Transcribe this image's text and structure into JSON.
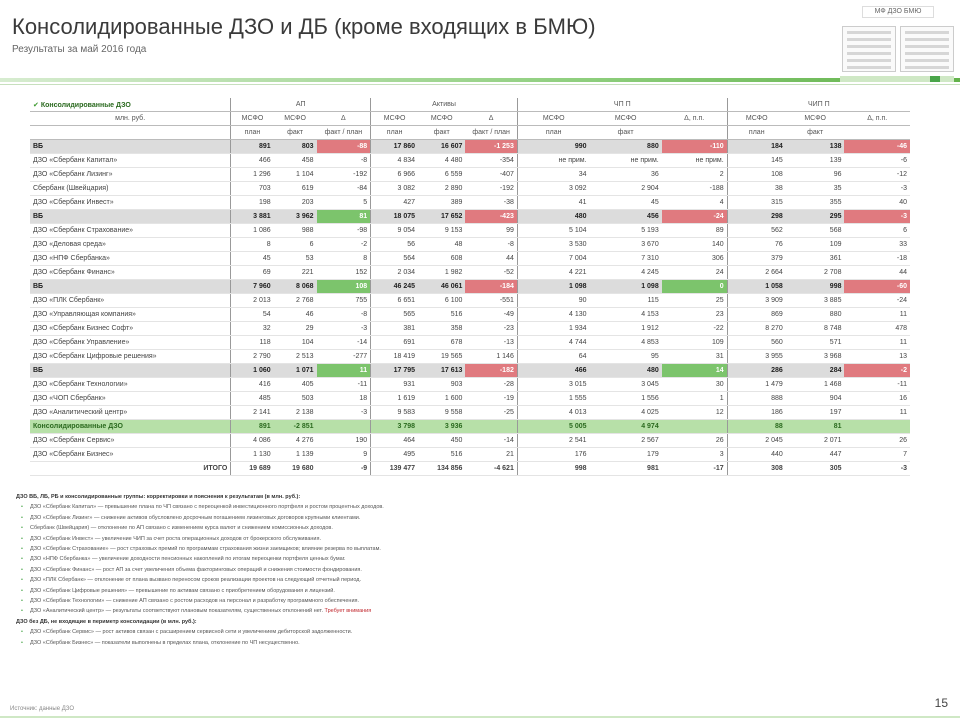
{
  "header": {
    "title": "Консолидированные ДЗО и ДБ (кроме входящих в БМЮ)",
    "subtitle": "Результаты за май 2016 года"
  },
  "table": {
    "legend": "Консолидированные ДЗО",
    "col_name": "млн. руб.",
    "groups": [
      "АП",
      "Активы",
      "ЧП П",
      "ЧИП П"
    ],
    "subheads": [
      [
        "МСФО",
        "МСФО",
        "Δ"
      ],
      [
        "МСФО",
        "МСФО",
        "Δ"
      ],
      [
        "МСФО",
        "МСФО",
        "Δ, п.п."
      ],
      [
        "МСФО",
        "МСФО",
        "Δ, п.п."
      ]
    ],
    "subheads2": [
      [
        "план",
        "факт",
        "факт / план"
      ],
      [
        "план",
        "факт",
        "факт / план"
      ],
      [
        "план",
        "факт",
        ""
      ],
      [
        "план",
        "факт",
        ""
      ]
    ],
    "rows": [
      {
        "type": "grp",
        "name": "ВБ",
        "v": [
          "891",
          "803",
          "-88",
          "17 860",
          "16 607",
          "-1 253",
          "990",
          "880",
          "-110",
          "184",
          "138",
          "-46"
        ]
      },
      {
        "type": "row",
        "name": "ДЗО «Сбербанк Капитал»",
        "v": [
          "466",
          "458",
          "-8",
          "4 834",
          "4 480",
          "-354",
          "не прим.",
          "не прим.",
          "не прим.",
          "145",
          "139",
          "-6"
        ]
      },
      {
        "type": "row",
        "name": "ДЗО «Сбербанк Лизинг»",
        "v": [
          "1 296",
          "1 104",
          "-192",
          "6 966",
          "6 559",
          "-407",
          "34",
          "36",
          "2",
          "108",
          "96",
          "-12"
        ]
      },
      {
        "type": "row",
        "name": "Сбербанк (Швейцария)",
        "v": [
          "703",
          "619",
          "-84",
          "3 082",
          "2 890",
          "-192",
          "3 092",
          "2 904",
          "-188",
          "38",
          "35",
          "-3"
        ]
      },
      {
        "type": "row",
        "name": "ДЗО «Сбербанк Инвест»",
        "v": [
          "198",
          "203",
          "5",
          "427",
          "389",
          "-38",
          "41",
          "45",
          "4",
          "315",
          "355",
          "40"
        ]
      },
      {
        "type": "grp",
        "name": "ВБ",
        "v": [
          "3 881",
          "3 962",
          "81",
          "18 075",
          "17 652",
          "-423",
          "480",
          "456",
          "-24",
          "298",
          "295",
          "-3"
        ]
      },
      {
        "type": "row",
        "name": "ДЗО «Сбербанк Страхование»",
        "v": [
          "1 086",
          "988",
          "-98",
          "9 054",
          "9 153",
          "99",
          "5 104",
          "5 193",
          "89",
          "562",
          "568",
          "6"
        ]
      },
      {
        "type": "row",
        "name": "ДЗО «Деловая среда»",
        "v": [
          "8",
          "6",
          "-2",
          "56",
          "48",
          "-8",
          "3 530",
          "3 670",
          "140",
          "76",
          "109",
          "33"
        ]
      },
      {
        "type": "row",
        "name": "ДЗО «НПФ Сбербанка»",
        "v": [
          "45",
          "53",
          "8",
          "564",
          "608",
          "44",
          "7 004",
          "7 310",
          "306",
          "379",
          "361",
          "-18"
        ]
      },
      {
        "type": "row",
        "name": "ДЗО «Сбербанк Финанс»",
        "v": [
          "69",
          "221",
          "152",
          "2 034",
          "1 982",
          "-52",
          "4 221",
          "4 245",
          "24",
          "2 664",
          "2 708",
          "44"
        ]
      },
      {
        "type": "grp",
        "name": "ВБ",
        "v": [
          "7 960",
          "8 068",
          "108",
          "46 245",
          "46 061",
          "-184",
          "1 098",
          "1 098",
          "0",
          "1 058",
          "998",
          "-60"
        ]
      },
      {
        "type": "row",
        "name": "ДЗО «ПЛК Сбербанк»",
        "v": [
          "2 013",
          "2 768",
          "755",
          "6 651",
          "6 100",
          "-551",
          "90",
          "115",
          "25",
          "3 909",
          "3 885",
          "-24"
        ]
      },
      {
        "type": "row",
        "name": "ДЗО «Управляющая компания»",
        "v": [
          "54",
          "46",
          "-8",
          "565",
          "516",
          "-49",
          "4 130",
          "4 153",
          "23",
          "869",
          "880",
          "11"
        ]
      },
      {
        "type": "row",
        "name": "ДЗО «Сбербанк Бизнес Софт»",
        "v": [
          "32",
          "29",
          "-3",
          "381",
          "358",
          "-23",
          "1 934",
          "1 912",
          "-22",
          "8 270",
          "8 748",
          "478"
        ]
      },
      {
        "type": "row",
        "name": "ДЗО «Сбербанк Управление»",
        "v": [
          "118",
          "104",
          "-14",
          "691",
          "678",
          "-13",
          "4 744",
          "4 853",
          "109",
          "560",
          "571",
          "11"
        ]
      },
      {
        "type": "row",
        "name": "ДЗО «Сбербанк Цифровые решения»",
        "v": [
          "2 790",
          "2 513",
          "-277",
          "18 419",
          "19 565",
          "1 146",
          "64",
          "95",
          "31",
          "3 955",
          "3 968",
          "13"
        ]
      },
      {
        "type": "grp",
        "name": "ВБ",
        "v": [
          "1 060",
          "1 071",
          "11",
          "17 795",
          "17 613",
          "-182",
          "466",
          "480",
          "14",
          "286",
          "284",
          "-2"
        ]
      },
      {
        "type": "row",
        "name": "ДЗО «Сбербанк Технологии»",
        "v": [
          "416",
          "405",
          "-11",
          "931",
          "903",
          "-28",
          "3 015",
          "3 045",
          "30",
          "1 479",
          "1 468",
          "-11"
        ]
      },
      {
        "type": "row",
        "name": "ДЗО «ЧОП Сбербанк»",
        "v": [
          "485",
          "503",
          "18",
          "1 619",
          "1 600",
          "-19",
          "1 555",
          "1 556",
          "1",
          "888",
          "904",
          "16"
        ]
      },
      {
        "type": "row",
        "name": "ДЗО «Аналитический центр»",
        "v": [
          "2 141",
          "2 138",
          "-3",
          "9 583",
          "9 558",
          "-25",
          "4 013",
          "4 025",
          "12",
          "186",
          "197",
          "11"
        ]
      },
      {
        "type": "green",
        "name": "Консолидированные ДЗО",
        "v": [
          "891",
          "-2 851",
          "",
          "3 798",
          "3 936",
          "",
          "5 005",
          "4 974",
          "",
          "88",
          "81",
          ""
        ]
      },
      {
        "type": "row",
        "name": "ДЗО «Сбербанк Сервис»",
        "v": [
          "4 086",
          "4 276",
          "190",
          "464",
          "450",
          "-14",
          "2 541",
          "2 567",
          "26",
          "2 045",
          "2 071",
          "26"
        ]
      },
      {
        "type": "row",
        "name": "ДЗО «Сбербанк Бизнес»",
        "v": [
          "1 130",
          "1 139",
          "9",
          "495",
          "516",
          "21",
          "176",
          "179",
          "3",
          "440",
          "447",
          "7"
        ]
      },
      {
        "type": "total",
        "name": "ИТОГО",
        "v": [
          "19 689",
          "19 680",
          "-9",
          "139 477",
          "134 856",
          "-4 621",
          "998",
          "981",
          "-17",
          "308",
          "305",
          "-3"
        ]
      }
    ]
  },
  "notes": [
    {
      "h": true,
      "t": "ДЗО ВБ, ЛБ, РБ и консолидированные группы: корректировки и пояснения к результатам (в млн. руб.):"
    },
    {
      "t": "ДЗО «Сбербанк Капитал» — превышение плана по ЧП связано с переоценкой инвестиционного портфеля и ростом процентных доходов."
    },
    {
      "t": "ДЗО «Сбербанк Лизинг» — снижение активов обусловлено досрочным погашением лизинговых договоров крупными клиентами."
    },
    {
      "t": "Сбербанк (Швейцария) — отклонение по АП связано с изменением курса валют и снижением комиссионных доходов."
    },
    {
      "t": "ДЗО «Сбербанк Инвест» — увеличение ЧИП за счет роста операционных доходов от брокерского обслуживания."
    },
    {
      "t": "ДЗО «Сбербанк Страхование» — рост страховых премий по программам страхования жизни заемщиков; влияние резерва по выплатам."
    },
    {
      "t": "ДЗО «НПФ Сбербанка» — увеличение доходности пенсионных накоплений по итогам переоценки портфеля ценных бумаг."
    },
    {
      "t": "ДЗО «Сбербанк Финанс» — рост АП за счет увеличения объема факторинговых операций и снижения стоимости фондирования."
    },
    {
      "t": "ДЗО «ПЛК Сбербанк» — отклонение от плана вызвано переносом сроков реализации проектов на следующий отчетный период."
    },
    {
      "t": "ДЗО «Сбербанк Цифровые решения» — превышение по активам связано с приобретением оборудования и лицензий."
    },
    {
      "t": "ДЗО «Сбербанк Технологии» — снижение АП связано с ростом расходов на персонал и разработку программного обеспечения."
    },
    {
      "t": "ДЗО «Аналитический центр» — результаты соответствуют плановым показателям, существенных отклонений нет.",
      "red": "Требует внимания"
    },
    {
      "h": true,
      "t": "ДЗО без ДБ, не входящие в периметр консолидации (в млн. руб.):"
    },
    {
      "t": "ДЗО «Сбербанк Сервис» — рост активов связан с расширением сервисной сети и увеличением дебиторской задолженности."
    },
    {
      "t": "ДЗО «Сбербанк Бизнес» — показатели выполнены в пределах плана, отклонение по ЧП несущественно."
    }
  ],
  "footer": {
    "source": "Источник: данные ДЗО",
    "page": "15"
  },
  "mini": {
    "title": "МФ ДЗО БМЮ"
  }
}
